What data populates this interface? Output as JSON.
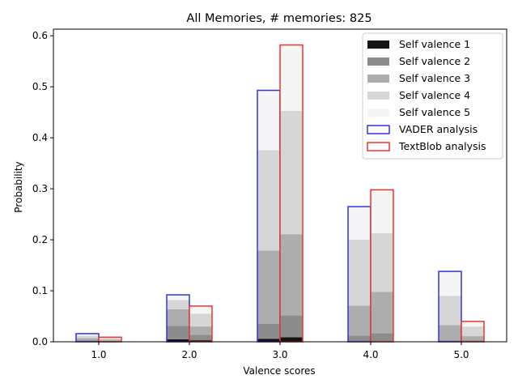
{
  "chart_data": {
    "type": "bar",
    "title": "All Memories, # memories: 825",
    "xlabel": "Valence scores",
    "ylabel": "Probability",
    "categories": [
      "1.0",
      "2.0",
      "3.0",
      "4.0",
      "5.0"
    ],
    "x": [
      1,
      2,
      3,
      4,
      5
    ],
    "xlim": [
      0.5,
      5.5
    ],
    "ylim": [
      0,
      0.613
    ],
    "yticks": [
      "0.0",
      "0.1",
      "0.2",
      "0.3",
      "0.4",
      "0.5",
      "0.6"
    ],
    "grid": false,
    "legend_position": "top-right",
    "groups": [
      {
        "name": "VADER analysis",
        "edge_color": "#3333dd",
        "stacked_series": [
          {
            "name": "Self valence 1",
            "values": [
              0.001,
              0.005,
              0.006,
              0.001,
              0.001
            ]
          },
          {
            "name": "Self valence 2",
            "values": [
              0.002,
              0.026,
              0.029,
              0.011,
              0.002
            ]
          },
          {
            "name": "Self valence 3",
            "values": [
              0.004,
              0.033,
              0.144,
              0.059,
              0.03
            ]
          },
          {
            "name": "Self valence 4",
            "values": [
              0.005,
              0.018,
              0.197,
              0.129,
              0.057
            ]
          },
          {
            "name": "Self valence 5",
            "values": [
              0.004,
              0.01,
              0.117,
              0.065,
              0.048
            ]
          }
        ]
      },
      {
        "name": "TextBlob analysis",
        "edge_color": "#ee3333",
        "stacked_series": [
          {
            "name": "Self valence 1",
            "values": [
              0.0,
              0.003,
              0.009,
              0.001,
              0.001
            ]
          },
          {
            "name": "Self valence 2",
            "values": [
              0.002,
              0.011,
              0.043,
              0.016,
              0.002
            ]
          },
          {
            "name": "Self valence 3",
            "values": [
              0.002,
              0.016,
              0.159,
              0.081,
              0.008
            ]
          },
          {
            "name": "Self valence 4",
            "values": [
              0.003,
              0.025,
              0.242,
              0.115,
              0.019
            ]
          },
          {
            "name": "Self valence 5",
            "values": [
              0.002,
              0.015,
              0.129,
              0.085,
              0.01
            ]
          }
        ]
      }
    ],
    "stack_colors": {
      "Self valence 1": "#151515",
      "Self valence 2": "#8c8c8c",
      "Self valence 3": "#adadad",
      "Self valence 4": "#d6d6d6",
      "Self valence 5": "#f5f5f5"
    },
    "legend": [
      {
        "label": "Self valence 1",
        "kind": "fill",
        "color": "#151515"
      },
      {
        "label": "Self valence 2",
        "kind": "fill",
        "color": "#8c8c8c"
      },
      {
        "label": "Self valence 3",
        "kind": "fill",
        "color": "#adadad"
      },
      {
        "label": "Self valence 4",
        "kind": "fill",
        "color": "#d6d6d6"
      },
      {
        "label": "Self valence 5",
        "kind": "fill",
        "color": "#f5f5f5"
      },
      {
        "label": "VADER analysis",
        "kind": "edge",
        "color": "#3333dd"
      },
      {
        "label": "TextBlob analysis",
        "kind": "edge",
        "color": "#ee3333"
      }
    ]
  }
}
